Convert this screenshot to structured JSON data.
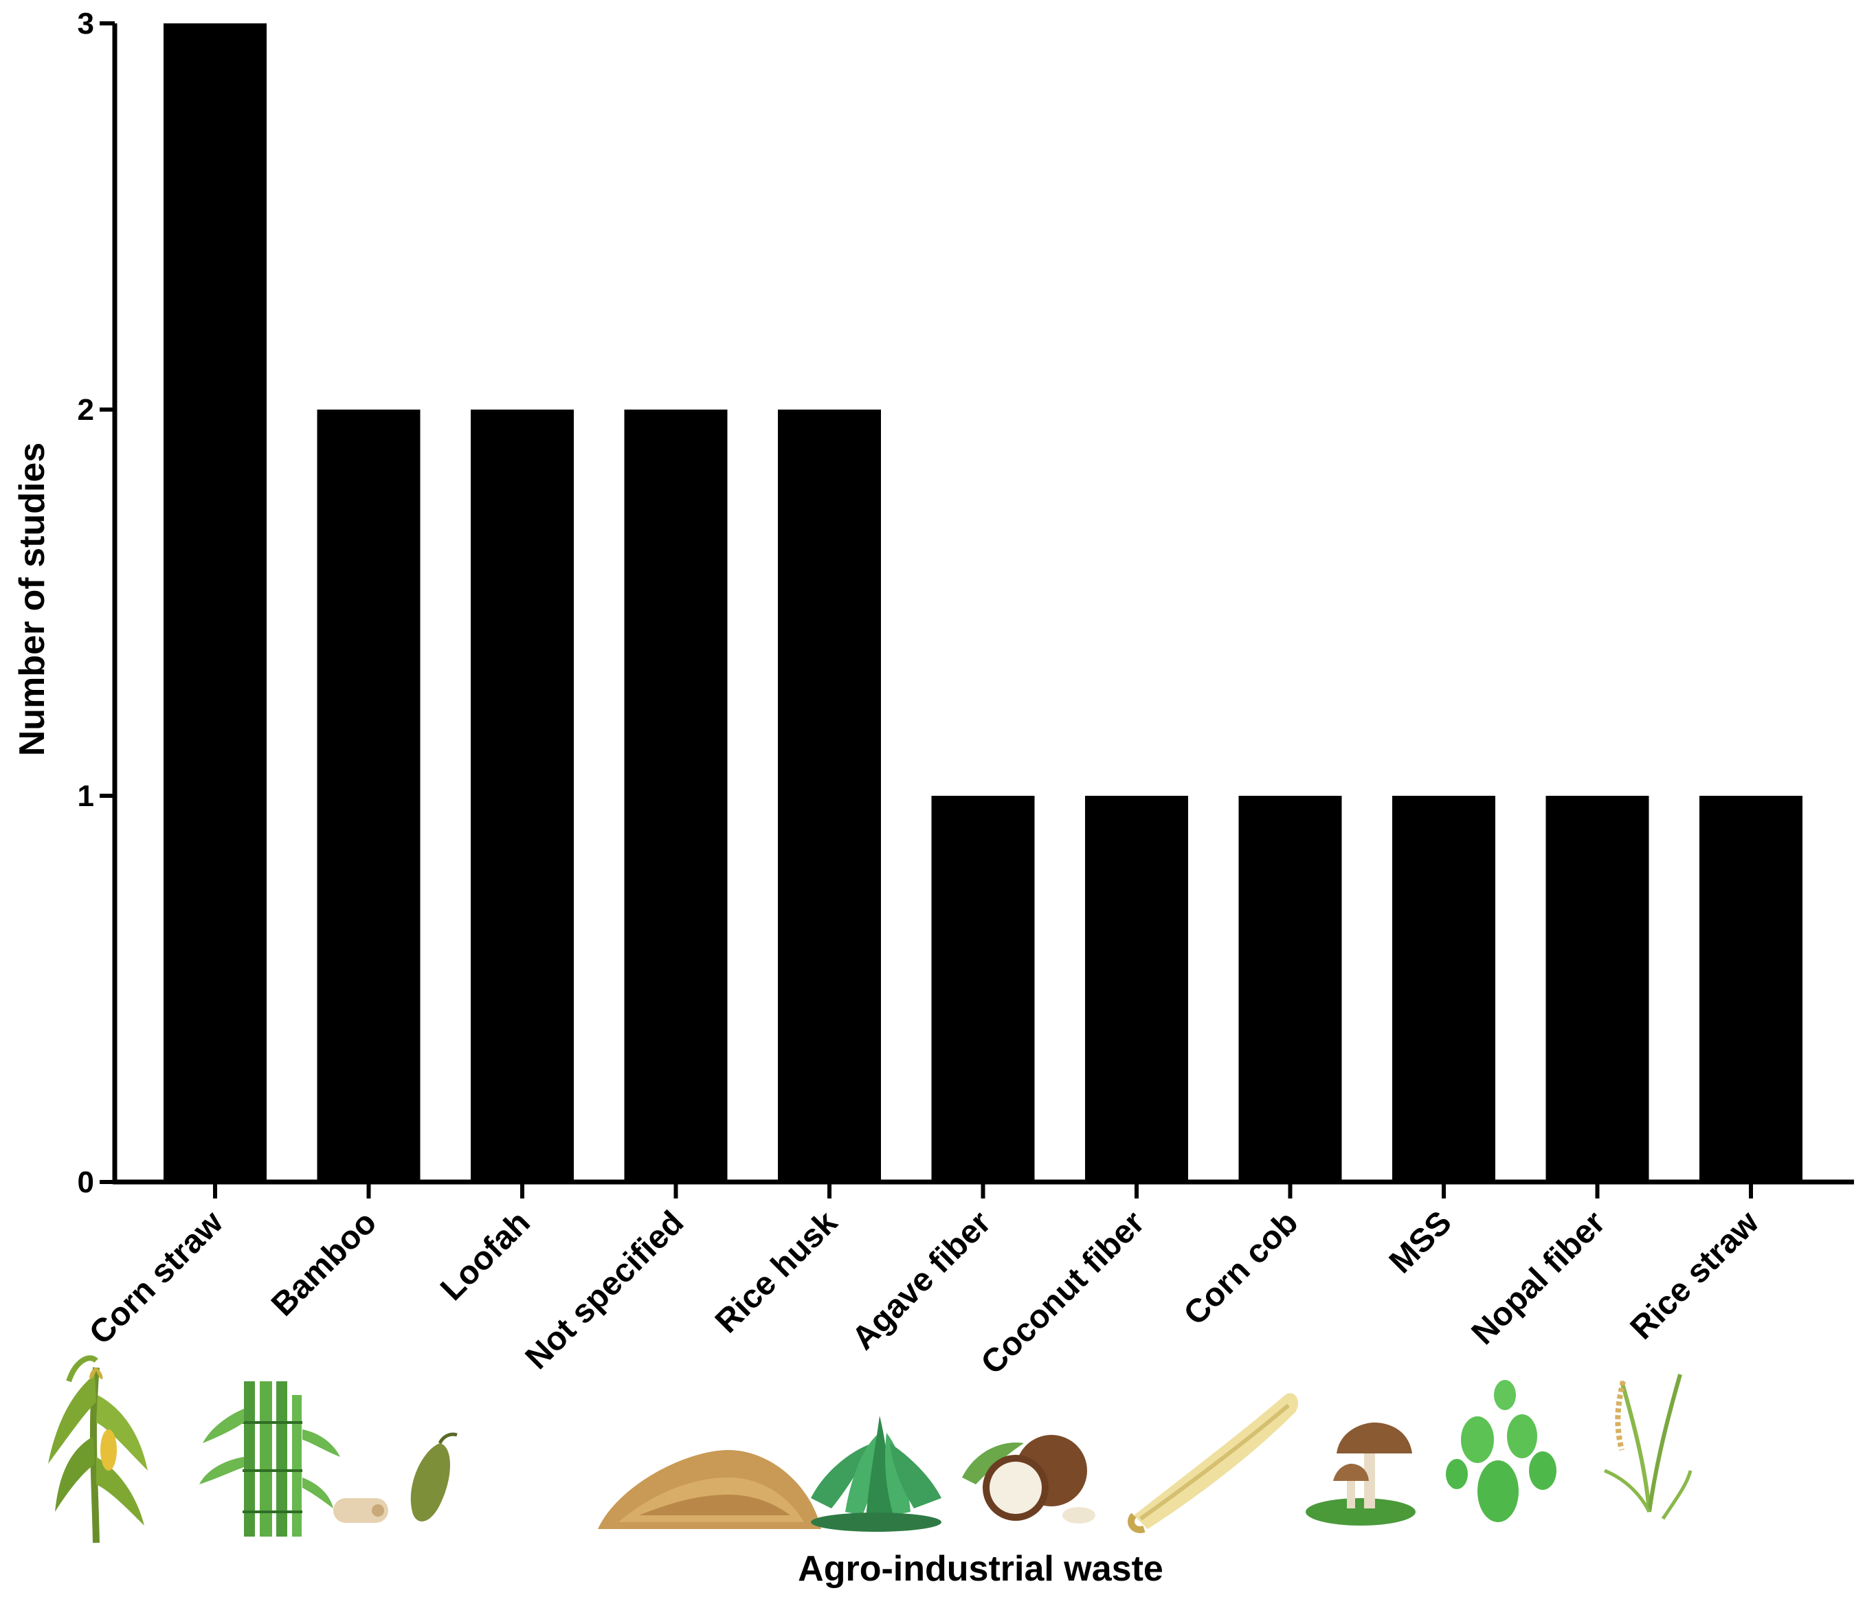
{
  "chart_data": {
    "type": "bar",
    "categories": [
      "Corn straw",
      "Bamboo",
      "Loofah",
      "Not specified",
      "Rice husk",
      "Agave fiber",
      "Coconut fiber",
      "Corn cob",
      "MSS",
      "Nopal fiber",
      "Rice straw"
    ],
    "values": [
      3,
      2,
      2,
      2,
      2,
      1,
      1,
      1,
      1,
      1,
      1
    ],
    "xlabel": "Agro-industrial waste",
    "ylabel": "Number of studies",
    "ylim": [
      0,
      3
    ],
    "yticks": [
      "0",
      "1",
      "2",
      "3"
    ],
    "bar_color": "#000000",
    "grid": false,
    "legend": "none",
    "category_icons": [
      "corn-plant-icon",
      "bamboo-icon",
      "loofah-icon",
      "grain-pile-icon",
      "agave-icon",
      "coconut-icon",
      "corn-cob-icon",
      "mushroom-icon",
      "cactus-icon",
      "rice-plant-icon"
    ]
  }
}
